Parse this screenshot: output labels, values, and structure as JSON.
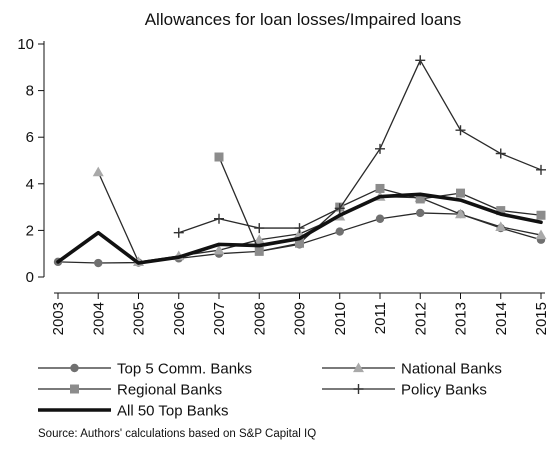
{
  "chart_data": {
    "type": "line",
    "title": "Allowances for loan losses/Impaired loans",
    "xlabel": "",
    "ylabel": "",
    "x": [
      "2003",
      "2004",
      "2005",
      "2006",
      "2007",
      "2008",
      "2009",
      "2010",
      "2011",
      "2012",
      "2013",
      "2014",
      "2015"
    ],
    "xlim": [
      2003,
      2015
    ],
    "ylim": [
      0,
      10
    ],
    "yticks": [
      0,
      2,
      4,
      6,
      8,
      10
    ],
    "grid": false,
    "legend_position": "bottom",
    "series": [
      {
        "name": "Top 5 Comm. Banks",
        "marker": "circle",
        "color": "#707070",
        "values": [
          0.65,
          0.6,
          0.62,
          0.8,
          1.0,
          1.1,
          1.4,
          1.95,
          2.5,
          2.75,
          2.7,
          2.1,
          1.6
        ]
      },
      {
        "name": "National Banks",
        "marker": "triangle",
        "color": "#a9a9a9",
        "values": [
          null,
          4.5,
          0.65,
          0.9,
          1.15,
          1.6,
          1.85,
          2.6,
          3.45,
          3.4,
          2.7,
          2.15,
          1.8
        ]
      },
      {
        "name": "Regional Banks",
        "marker": "square",
        "color": "#8c8c8c",
        "values": [
          null,
          null,
          null,
          null,
          5.15,
          1.1,
          1.45,
          3.0,
          3.8,
          3.35,
          3.6,
          2.85,
          2.65
        ]
      },
      {
        "name": "Policy Banks",
        "marker": "plus",
        "color": "#333333",
        "values": [
          null,
          null,
          null,
          1.9,
          2.5,
          2.1,
          2.1,
          2.95,
          5.5,
          9.3,
          6.3,
          5.3,
          4.6
        ]
      },
      {
        "name": "All 50 Top Banks",
        "marker": "none",
        "color": "#111111",
        "bold": true,
        "values": [
          0.65,
          1.9,
          0.6,
          0.85,
          1.4,
          1.35,
          1.65,
          2.65,
          3.45,
          3.55,
          3.3,
          2.7,
          2.35
        ]
      }
    ]
  },
  "source_note": "Source: Authors' calculations based on S&P Capital IQ"
}
